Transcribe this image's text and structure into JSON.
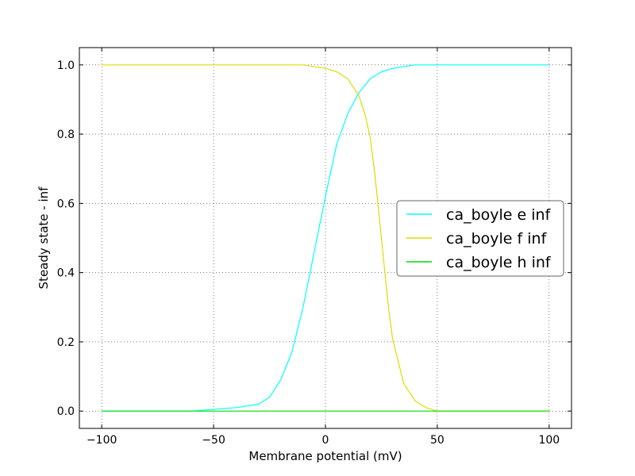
{
  "chart_data": {
    "type": "line",
    "title": "",
    "xlabel": "Membrane potential (mV)",
    "ylabel": "Steady state - inf",
    "xlim": [
      -110,
      110
    ],
    "ylim": [
      -0.05,
      1.05
    ],
    "xticks": [
      -100,
      -50,
      0,
      50,
      100
    ],
    "xtick_labels": [
      "−100",
      "−50",
      "0",
      "50",
      "100"
    ],
    "yticks": [
      0.0,
      0.2,
      0.4,
      0.6,
      0.8,
      1.0
    ],
    "ytick_labels": [
      "0.0",
      "0.2",
      "0.4",
      "0.6",
      "0.8",
      "1.0"
    ],
    "grid": true,
    "legend_position": "center-right",
    "series": [
      {
        "name": "ca_boyle e inf",
        "color": "#00ffff",
        "x": [
          -100,
          -60,
          -40,
          -30,
          -25,
          -20,
          -15,
          -10,
          -5,
          0,
          5,
          10,
          15,
          20,
          25,
          30,
          40,
          60,
          100
        ],
        "y": [
          0.0,
          0.0,
          0.01,
          0.02,
          0.04,
          0.09,
          0.17,
          0.3,
          0.46,
          0.62,
          0.77,
          0.86,
          0.92,
          0.96,
          0.98,
          0.99,
          1.0,
          1.0,
          1.0
        ]
      },
      {
        "name": "ca_boyle f inf",
        "color": "#dddd00",
        "x": [
          -100,
          -40,
          -20,
          -10,
          0,
          5,
          10,
          15,
          18,
          20,
          22,
          25,
          28,
          30,
          35,
          40,
          45,
          50,
          60,
          100
        ],
        "y": [
          1.0,
          1.0,
          1.0,
          1.0,
          0.99,
          0.98,
          0.96,
          0.91,
          0.85,
          0.79,
          0.69,
          0.5,
          0.31,
          0.21,
          0.08,
          0.03,
          0.01,
          0.0,
          0.0,
          0.0
        ]
      },
      {
        "name": "ca_boyle h inf",
        "color": "#00dd00",
        "x": [
          -100,
          100
        ],
        "y": [
          0.0,
          0.0
        ]
      }
    ]
  }
}
